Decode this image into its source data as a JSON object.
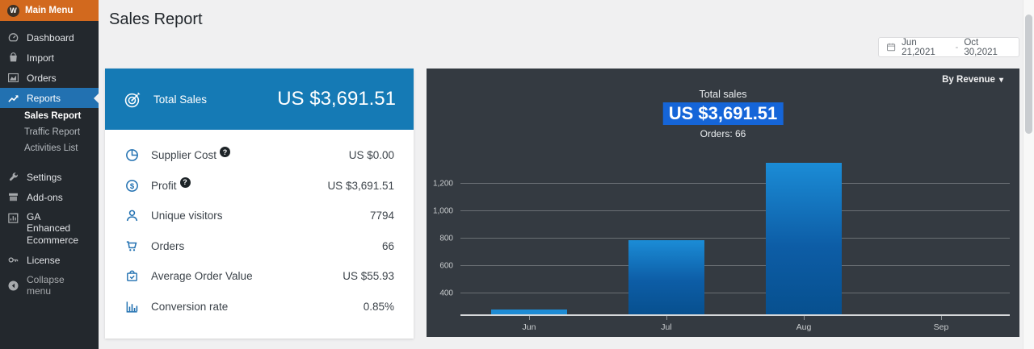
{
  "colors": {
    "sidebar_bg": "#23282d",
    "sidebar_orange": "#d2691e",
    "active_menu_blue": "#2271b1",
    "card_header_blue": "#157ab5",
    "highlight_blue": "#1565d8",
    "panel_bg": "#343a41",
    "bar_top": "#1b8cd6",
    "bar_bottom": "#07508f",
    "page_bg": "#f0f0f1"
  },
  "sidebar": {
    "header": {
      "label": "Main Menu",
      "logo": "wordpress-logo"
    },
    "items": [
      {
        "label": "Dashboard",
        "icon": "gauge-icon",
        "active": false
      },
      {
        "label": "Import",
        "icon": "bag-icon",
        "active": false
      },
      {
        "label": "Orders",
        "icon": "area-chart-icon",
        "active": false
      },
      {
        "label": "Reports",
        "icon": "line-chart-icon",
        "active": true
      }
    ],
    "submenu": [
      {
        "label": "Sales Report",
        "active": true
      },
      {
        "label": "Traffic Report",
        "active": false
      },
      {
        "label": "Activities List",
        "active": false
      }
    ],
    "items_bottom": [
      {
        "label": "Settings",
        "icon": "wrench-icon"
      },
      {
        "label": "Add-ons",
        "icon": "addons-box-icon"
      },
      {
        "label": "GA Enhanced Ecommerce",
        "icon": "analytics-icon"
      },
      {
        "label": "License",
        "icon": "key-icon"
      },
      {
        "label": "Collapse menu",
        "icon": "collapse-arrow-icon"
      }
    ]
  },
  "header": {
    "title": "Sales Report"
  },
  "date_range": {
    "icon": "calendar-icon",
    "start": "Jun 21,2021",
    "separator": "-",
    "end": "Oct 30,2021"
  },
  "summary_card": {
    "header": {
      "icon": "target-icon",
      "label": "Total Sales",
      "value": "US $3,691.51"
    },
    "rows": [
      {
        "icon": "pie-icon",
        "label": "Supplier Cost",
        "help": true,
        "value": "US $0.00"
      },
      {
        "icon": "dollar-icon",
        "label": "Profit",
        "help": true,
        "value": "US $3,691.51"
      },
      {
        "icon": "person-icon",
        "label": "Unique visitors",
        "help": false,
        "value": "7794"
      },
      {
        "icon": "cart-icon",
        "label": "Orders",
        "help": false,
        "value": "66"
      },
      {
        "icon": "bag-check-icon",
        "label": "Average Order Value",
        "help": false,
        "value": "US $55.93"
      },
      {
        "icon": "bar-chart-icon",
        "label": "Conversion rate",
        "help": false,
        "value": "0.85%"
      }
    ]
  },
  "chart_panel": {
    "dropdown": {
      "label": "By Revenue",
      "icon": "caret-down-icon"
    },
    "overlay": {
      "title": "Total sales",
      "value": "US $3,691.51",
      "subtitle": "Orders: 66"
    }
  },
  "chart_data": {
    "type": "bar",
    "title": "Total sales",
    "subtitle": "Orders: 66",
    "series_name": "Revenue",
    "categories": [
      "Jun",
      "Jul",
      "Aug",
      "Sep"
    ],
    "values": [
      285,
      790,
      1350,
      0
    ],
    "yticks": [
      400,
      600,
      800,
      1000,
      1200
    ],
    "ytick_labels": [
      "400",
      "600",
      "800",
      "1,000",
      "1,200"
    ],
    "ylim": [
      250,
      1380
    ],
    "xlabel": "",
    "ylabel": "",
    "grid": true,
    "legend_position": "none"
  }
}
